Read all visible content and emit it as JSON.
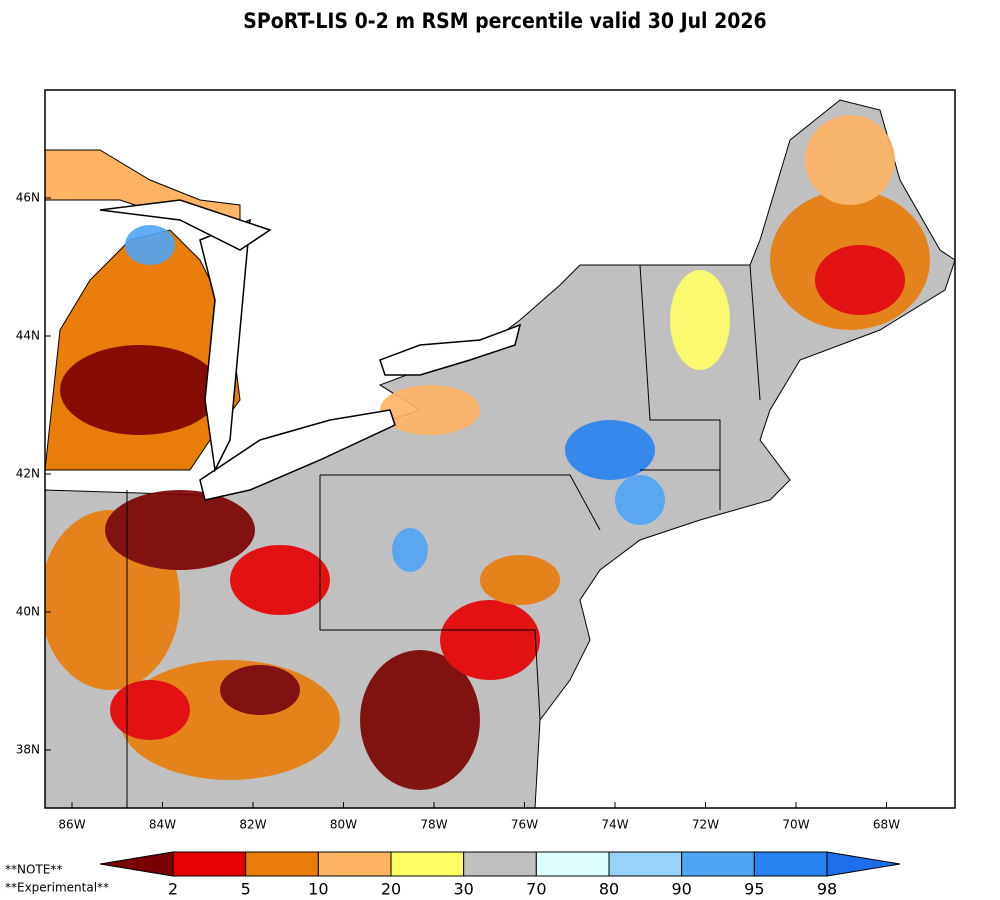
{
  "title": "SPoRT-LIS 0-2 m RSM percentile valid 30 Jul 2026",
  "map": {
    "lon_ticks": [
      {
        "value": -86,
        "label": "86W"
      },
      {
        "value": -84,
        "label": "84W"
      },
      {
        "value": -82,
        "label": "82W"
      },
      {
        "value": -80,
        "label": "80W"
      },
      {
        "value": -78,
        "label": "78W"
      },
      {
        "value": -76,
        "label": "76W"
      },
      {
        "value": -74,
        "label": "74W"
      },
      {
        "value": -72,
        "label": "72W"
      },
      {
        "value": -70,
        "label": "70W"
      },
      {
        "value": -68,
        "label": "68W"
      }
    ],
    "lat_ticks": [
      {
        "value": 38,
        "label": "38N"
      },
      {
        "value": 40,
        "label": "40N"
      },
      {
        "value": 42,
        "label": "42N"
      },
      {
        "value": 44,
        "label": "44N"
      },
      {
        "value": 46,
        "label": "46N"
      }
    ]
  },
  "colorbar": {
    "labels": [
      2,
      5,
      10,
      20,
      30,
      70,
      80,
      90,
      95,
      98
    ],
    "colors": [
      "#7a0000",
      "#e60000",
      "#e87d0a",
      "#ffb464",
      "#ffff64",
      "#c0c0c0",
      "#e0ffff",
      "#96d2fa",
      "#50a5f5",
      "#2882f0",
      "#1e6eeb"
    ]
  },
  "notes": [
    "**NOTE**",
    "**Experimental**"
  ]
}
